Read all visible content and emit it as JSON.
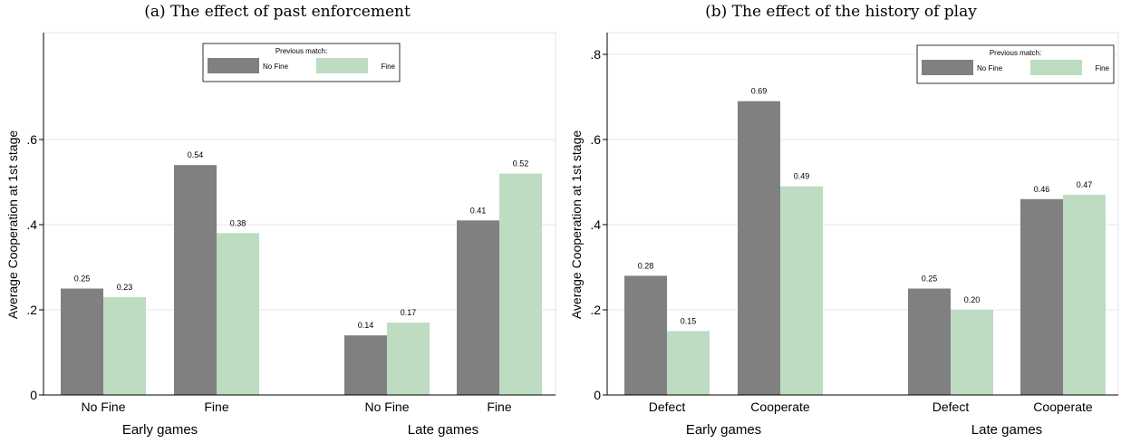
{
  "colors": {
    "no_fine": "#808080",
    "fine": "#bddcc1",
    "grid": "#e4e4e4",
    "axis": "#000000"
  },
  "chart_data": [
    {
      "type": "bar",
      "title": "(a) The effect of past enforcement",
      "ylabel": "Average Cooperation at 1st stage",
      "ylim": [
        0,
        0.8
      ],
      "yticks": [
        0,
        0.2,
        0.4,
        0.6
      ],
      "ytick_labels": [
        "0",
        ".2",
        ".4",
        ".6"
      ],
      "grid": true,
      "legend": {
        "title": "Previous match:",
        "placement": "top-center",
        "entries": [
          "No Fine",
          "Fine"
        ]
      },
      "groups": [
        {
          "label": "Early games",
          "categories": [
            "No Fine",
            "Fine"
          ]
        },
        {
          "label": "Late games",
          "categories": [
            "No Fine",
            "Fine"
          ]
        }
      ],
      "series": [
        {
          "name": "No Fine",
          "values": [
            0.25,
            0.54,
            0.14,
            0.41
          ],
          "labels": [
            "0.25",
            "0.54",
            "0.14",
            "0.41"
          ]
        },
        {
          "name": "Fine",
          "values": [
            0.23,
            0.38,
            0.17,
            0.52
          ],
          "labels": [
            "0.23",
            "0.38",
            "0.17",
            "0.52"
          ]
        }
      ]
    },
    {
      "type": "bar",
      "title": "(b) The effect of the history of play",
      "ylabel": "Average Cooperation at 1st stage",
      "ylim": [
        0,
        0.8
      ],
      "yticks": [
        0,
        0.2,
        0.4,
        0.6,
        0.8
      ],
      "ytick_labels": [
        "0",
        ".2",
        ".4",
        ".6",
        ".8"
      ],
      "grid": true,
      "legend": {
        "title": "Previous match:",
        "placement": "top-right",
        "entries": [
          "No Fine",
          "Fine"
        ]
      },
      "groups": [
        {
          "label": "Early games",
          "categories": [
            "Defect",
            "Cooperate"
          ]
        },
        {
          "label": "Late games",
          "categories": [
            "Defect",
            "Cooperate"
          ]
        }
      ],
      "series": [
        {
          "name": "No Fine",
          "values": [
            0.28,
            0.69,
            0.25,
            0.46
          ],
          "labels": [
            "0.28",
            "0.69",
            "0.25",
            "0.46"
          ]
        },
        {
          "name": "Fine",
          "values": [
            0.15,
            0.49,
            0.2,
            0.47
          ],
          "labels": [
            "0.15",
            "0.49",
            "0.20",
            "0.47"
          ]
        }
      ]
    }
  ]
}
